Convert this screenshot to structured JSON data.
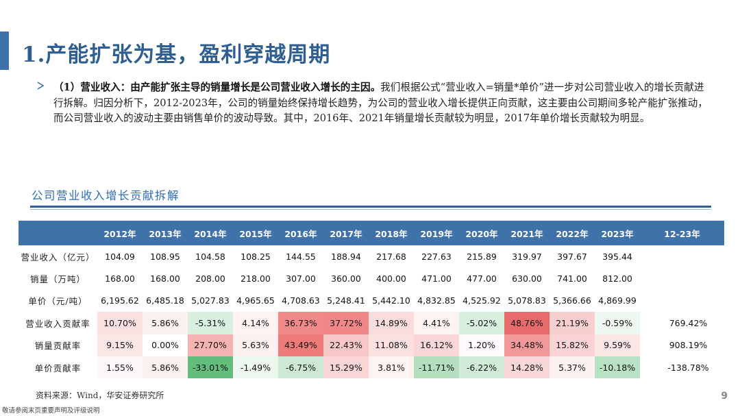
{
  "page": {
    "title": "1.产能扩张为基，盈利穿越周期",
    "page_number": "9",
    "footer_note": "敬请参阅末页重要声明及评级说明",
    "accent_color": "#3e72a8"
  },
  "summary": {
    "bullet_icon": "triangle-right-icon",
    "bold_lead": "（1）营业收入：由产能扩张主导的销量增长是公司营业收入增长的主因。",
    "body": "我们根据公式“营业收入=销量*单价”进一步对公司营业收入的增长贡献进行拆解。归因分析下，2012-2023年，公司的销量始终保持增长趋势，为公司的营业收入增长提供正向贡献，这主要由公司期间多轮产能扩张推动，而公司营业收入的波动主要由销售单价的波动导致。其中，2016年、2021年销量增长贡献较为明显，2017年单价增长贡献较为明显。"
  },
  "table": {
    "title": "公司营业收入增长贡献拆解",
    "columns": [
      "2012年",
      "2013年",
      "2014年",
      "2015年",
      "2016年",
      "2017年",
      "2018年",
      "2019年",
      "2020年",
      "2021年",
      "2022年",
      "2023年",
      "12-23年"
    ],
    "rows": [
      {
        "label": "营业收入（亿元）",
        "values": [
          "104.09",
          "108.95",
          "104.58",
          "108.25",
          "144.55",
          "188.94",
          "217.68",
          "227.63",
          "215.89",
          "319.97",
          "397.67",
          "395.44",
          ""
        ],
        "colors": [
          "",
          "",
          "",
          "",
          "",
          "",
          "",
          "",
          "",
          "",
          "",
          "",
          ""
        ]
      },
      {
        "label": "销量（万吨）",
        "values": [
          "168.00",
          "168.00",
          "208.00",
          "218.00",
          "307.00",
          "360.00",
          "400.00",
          "471.00",
          "477.00",
          "630.00",
          "741.00",
          "812.00",
          ""
        ],
        "colors": [
          "",
          "",
          "",
          "",
          "",
          "",
          "",
          "",
          "",
          "",
          "",
          "",
          ""
        ]
      },
      {
        "label": "单价（元/吨）",
        "values": [
          "6,195.62",
          "6,485.18",
          "5,027.83",
          "4,965.65",
          "4,708.63",
          "5,248.41",
          "5,442.10",
          "4,832.85",
          "4,525.92",
          "5,078.83",
          "5,366.66",
          "4,869.99",
          ""
        ],
        "colors": [
          "",
          "",
          "",
          "",
          "",
          "",
          "",
          "",
          "",
          "",
          "",
          "",
          ""
        ]
      },
      {
        "label": "营业收入贡献率",
        "values": [
          "10.70%",
          "5.86%",
          "-5.31%",
          "4.14%",
          "36.73%",
          "37.72%",
          "14.89%",
          "4.41%",
          "-5.02%",
          "48.76%",
          "21.19%",
          "-0.59%",
          "769.42%"
        ],
        "colors": [
          "#fbe1e1",
          "#fdf0f0",
          "#d9efdf",
          "#fdf3f3",
          "#f08a8a",
          "#f0888a",
          "#fbdcdc",
          "#fdf3f3",
          "#d9efdf",
          "#e86b6b",
          "#f8cfcf",
          "#eef7f0",
          ""
        ]
      },
      {
        "label": "销量贡献率",
        "values": [
          "9.15%",
          "0.00%",
          "27.70%",
          "5.63%",
          "43.49%",
          "22.43%",
          "11.08%",
          "16.12%",
          "1.20%",
          "34.48%",
          "15.82%",
          "9.59%",
          "908.19%"
        ],
        "colors": [
          "#fbe6e6",
          "#ffffff",
          "#f5b3b3",
          "#fdf0f0",
          "#ee7a7a",
          "#f7c6c6",
          "#fbe0e0",
          "#fad6d6",
          "#fefafa",
          "#f29898",
          "#fad4d4",
          "#fbe5e5",
          ""
        ]
      },
      {
        "label": "单价贡献率",
        "values": [
          "1.55%",
          "5.86%",
          "-33.01%",
          "-1.49%",
          "-6.75%",
          "15.29%",
          "3.81%",
          "-11.71%",
          "-6.22%",
          "14.28%",
          "5.37%",
          "-10.18%",
          "-138.78%"
        ],
        "colors": [
          "#fdf8f8",
          "#fdf0f0",
          "#63be7b",
          "#edf7ef",
          "#cde9d5",
          "#fad5d5",
          "#fdf3f3",
          "#b3dfbf",
          "#d0ebd8",
          "#fbd8d8",
          "#fdf1f1",
          "#b9e2c4",
          ""
        ]
      }
    ],
    "source": "资料来源：Wind，华安证券研究所"
  }
}
